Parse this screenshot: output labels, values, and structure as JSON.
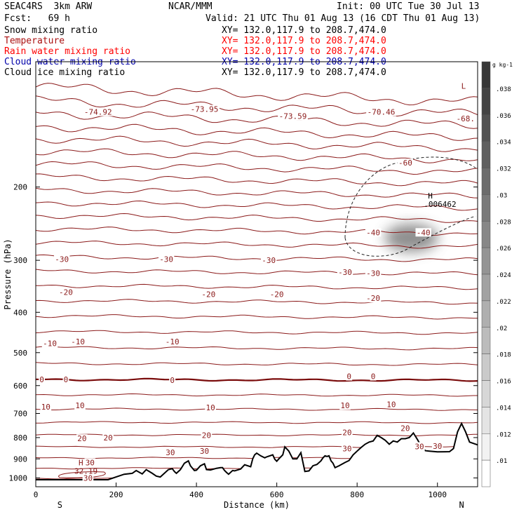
{
  "header": {
    "model": "SEAC4RS  3km ARW",
    "org": "NCAR/MMM",
    "init": "Init: 00 UTC Tue 30 Jul 13",
    "fcst": "Fcst:   69 h",
    "valid": "Valid: 21 UTC Thu 01 Aug 13 (16 CDT Thu 01 Aug 13)"
  },
  "fields": [
    {
      "name": "Snow mixing ratio",
      "xy": "XY= 132.0,117.9 to 208.7,474.0",
      "color": "#000000"
    },
    {
      "name": "Temperature",
      "xy": "XY= 132.0,117.9 to 208.7,474.0",
      "color": "#aa1111"
    },
    {
      "name": "Rain water mixing ratio",
      "xy": "XY= 132.0,117.9 to 208.7,474.0",
      "color": "#ff0000"
    },
    {
      "name": "Cloud water mixing ratio",
      "xy": "XY= 132.0,117.9 to 208.7,474.0",
      "color": "#0000aa"
    },
    {
      "name": "Cloud ice mixing ratio",
      "xy": "XY= 132.0,117.9 to 208.7,474.0",
      "color": "#000000"
    }
  ],
  "chart_data": {
    "type": "line",
    "xlabel": "Distance (km)",
    "ylabel": "Pressure (hPa)",
    "xlim": [
      0,
      1100
    ],
    "ylim": [
      1050,
      100
    ],
    "y_scale": "log",
    "xticks": [
      0,
      200,
      400,
      600,
      800,
      1000
    ],
    "yticks": [
      200,
      300,
      400,
      500,
      600,
      700,
      800,
      900,
      1000
    ],
    "x_end_labels": {
      "left": "S",
      "right": "N"
    },
    "colorbar": {
      "unit": "g kg-1",
      "ticks": [
        ".01",
        ".012",
        ".014",
        ".016",
        ".018",
        ".02",
        ".022",
        ".024",
        ".026",
        ".028",
        ".03",
        ".032",
        ".034",
        ".036",
        ".038"
      ]
    },
    "isotherm_labels": [
      {
        "text": "-74.92",
        "x": 155,
        "p": 132
      },
      {
        "text": "-73.95",
        "x": 420,
        "p": 130
      },
      {
        "text": "-73.59",
        "x": 640,
        "p": 135
      },
      {
        "text": "-70.46",
        "x": 860,
        "p": 132
      },
      {
        "text": "-68.",
        "x": 1070,
        "p": 137
      },
      {
        "text": "-60",
        "x": 920,
        "p": 175
      },
      {
        "text": "-40",
        "x": 840,
        "p": 257
      },
      {
        "text": "-40",
        "x": 965,
        "p": 257
      },
      {
        "text": "-30",
        "x": 65,
        "p": 298
      },
      {
        "text": "-30",
        "x": 325,
        "p": 298
      },
      {
        "text": "-30",
        "x": 580,
        "p": 300
      },
      {
        "text": "-30",
        "x": 770,
        "p": 320
      },
      {
        "text": "-30",
        "x": 840,
        "p": 322
      },
      {
        "text": "-20",
        "x": 75,
        "p": 358
      },
      {
        "text": "-20",
        "x": 430,
        "p": 362
      },
      {
        "text": "-20",
        "x": 600,
        "p": 362
      },
      {
        "text": "-20",
        "x": 840,
        "p": 370
      },
      {
        "text": "-10",
        "x": 35,
        "p": 475
      },
      {
        "text": "-10",
        "x": 105,
        "p": 470
      },
      {
        "text": "-10",
        "x": 340,
        "p": 470
      },
      {
        "text": "0",
        "x": 15,
        "p": 580
      },
      {
        "text": "0",
        "x": 75,
        "p": 580
      },
      {
        "text": "0",
        "x": 340,
        "p": 582
      },
      {
        "text": "0",
        "x": 780,
        "p": 570
      },
      {
        "text": "0",
        "x": 840,
        "p": 570
      },
      {
        "text": "10",
        "x": 25,
        "p": 675
      },
      {
        "text": "10",
        "x": 110,
        "p": 670
      },
      {
        "text": "10",
        "x": 435,
        "p": 677
      },
      {
        "text": "10",
        "x": 770,
        "p": 670
      },
      {
        "text": "10",
        "x": 885,
        "p": 665
      },
      {
        "text": "20",
        "x": 115,
        "p": 804
      },
      {
        "text": "20",
        "x": 180,
        "p": 800
      },
      {
        "text": "20",
        "x": 425,
        "p": 790
      },
      {
        "text": "20",
        "x": 775,
        "p": 777
      },
      {
        "text": "20",
        "x": 920,
        "p": 760
      },
      {
        "text": "30",
        "x": 135,
        "p": 918
      },
      {
        "text": "30",
        "x": 335,
        "p": 868
      },
      {
        "text": "30",
        "x": 420,
        "p": 862
      },
      {
        "text": "30",
        "x": 775,
        "p": 850
      },
      {
        "text": "30",
        "x": 955,
        "p": 840
      },
      {
        "text": "30",
        "x": 1000,
        "p": 838
      },
      {
        "text": "30",
        "x": 130,
        "p": 1000
      }
    ],
    "highs": [
      {
        "letter": "H",
        "value": "32.19",
        "x": 110,
        "p": 962
      },
      {
        "letter": "H",
        "value": ".006462",
        "x": 980,
        "p": 220
      }
    ],
    "lows": [
      {
        "letter": "L",
        "x": 1065,
        "p": 116
      }
    ],
    "terrain": [
      [
        0,
        1010
      ],
      [
        100,
        1010
      ],
      [
        180,
        1010
      ],
      [
        200,
        995
      ],
      [
        220,
        980
      ],
      [
        240,
        975
      ],
      [
        250,
        960
      ],
      [
        265,
        978
      ],
      [
        275,
        955
      ],
      [
        290,
        975
      ],
      [
        300,
        990
      ],
      [
        310,
        995
      ],
      [
        320,
        975
      ],
      [
        330,
        955
      ],
      [
        340,
        950
      ],
      [
        345,
        965
      ],
      [
        350,
        975
      ],
      [
        360,
        955
      ],
      [
        370,
        922
      ],
      [
        380,
        910
      ],
      [
        385,
        935
      ],
      [
        395,
        960
      ],
      [
        400,
        958
      ],
      [
        410,
        935
      ],
      [
        420,
        925
      ],
      [
        425,
        955
      ],
      [
        435,
        957
      ],
      [
        450,
        948
      ],
      [
        460,
        945
      ],
      [
        465,
        945
      ],
      [
        470,
        960
      ],
      [
        475,
        970
      ],
      [
        480,
        980
      ],
      [
        490,
        960
      ],
      [
        495,
        962
      ],
      [
        510,
        952
      ],
      [
        520,
        930
      ],
      [
        535,
        940
      ],
      [
        540,
        900
      ],
      [
        545,
        880
      ],
      [
        550,
        872
      ],
      [
        560,
        885
      ],
      [
        570,
        895
      ],
      [
        575,
        890
      ],
      [
        590,
        880
      ],
      [
        595,
        902
      ],
      [
        600,
        912
      ],
      [
        605,
        900
      ],
      [
        615,
        880
      ],
      [
        620,
        842
      ],
      [
        630,
        862
      ],
      [
        640,
        900
      ],
      [
        650,
        900
      ],
      [
        660,
        870
      ],
      [
        670,
        965
      ],
      [
        680,
        962
      ],
      [
        690,
        935
      ],
      [
        700,
        928
      ],
      [
        710,
        910
      ],
      [
        715,
        895
      ],
      [
        720,
        885
      ],
      [
        725,
        888
      ],
      [
        730,
        885
      ],
      [
        735,
        910
      ],
      [
        740,
        922
      ],
      [
        745,
        945
      ],
      [
        755,
        935
      ],
      [
        770,
        918
      ],
      [
        780,
        908
      ],
      [
        790,
        880
      ],
      [
        800,
        862
      ],
      [
        810,
        845
      ],
      [
        820,
        830
      ],
      [
        830,
        820
      ],
      [
        840,
        815
      ],
      [
        850,
        790
      ],
      [
        860,
        800
      ],
      [
        870,
        812
      ],
      [
        880,
        830
      ],
      [
        890,
        815
      ],
      [
        900,
        820
      ],
      [
        910,
        805
      ],
      [
        920,
        805
      ],
      [
        930,
        800
      ],
      [
        940,
        780
      ],
      [
        950,
        808
      ],
      [
        960,
        840
      ],
      [
        970,
        860
      ],
      [
        980,
        862
      ],
      [
        1000,
        866
      ],
      [
        1030,
        865
      ],
      [
        1040,
        850
      ],
      [
        1050,
        775
      ],
      [
        1060,
        740
      ],
      [
        1070,
        775
      ],
      [
        1080,
        820
      ],
      [
        1100,
        833
      ]
    ]
  }
}
